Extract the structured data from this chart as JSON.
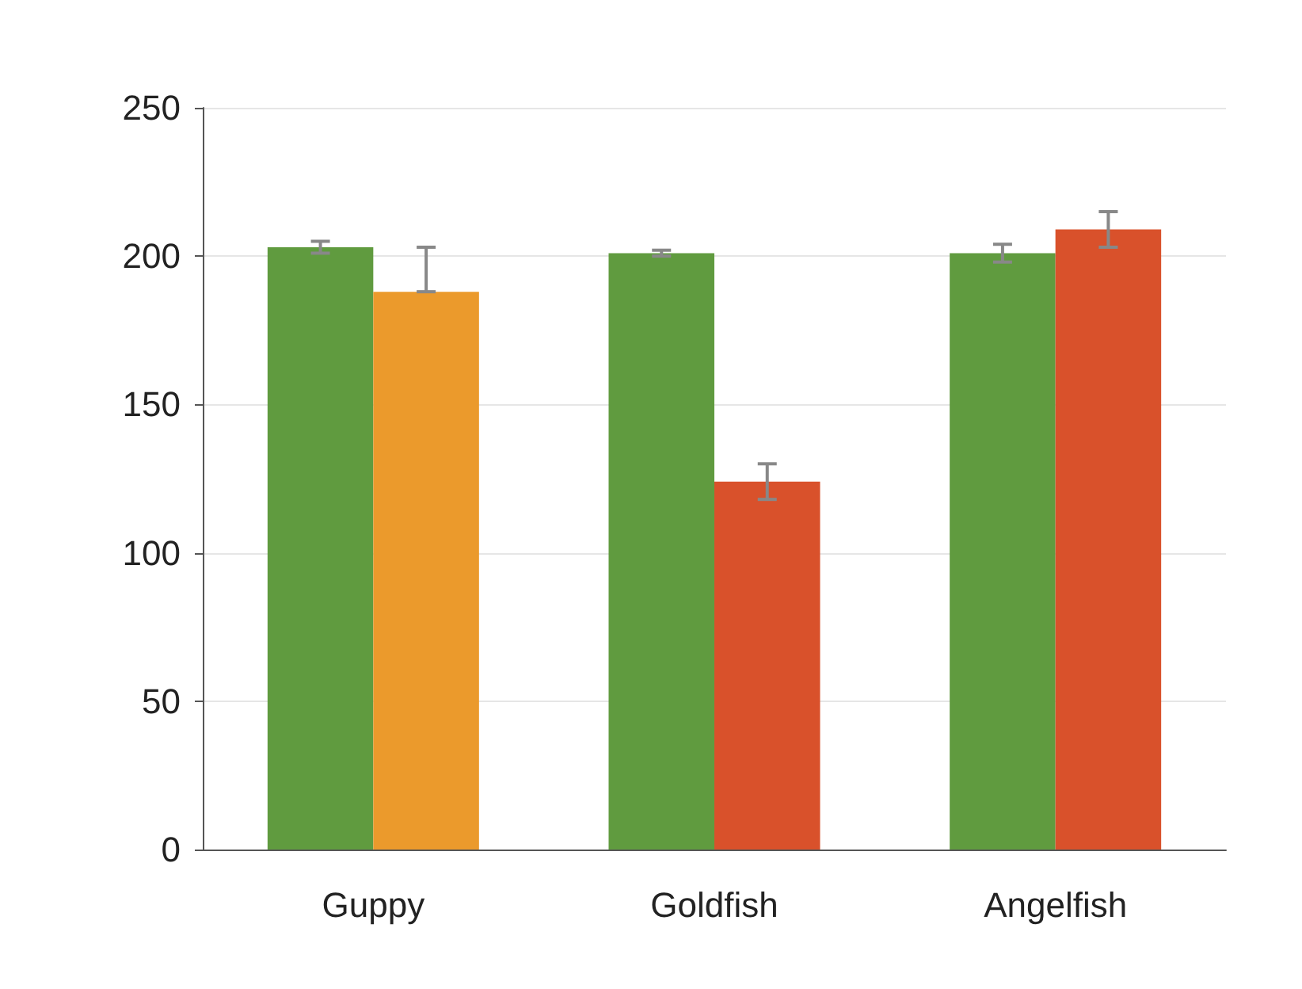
{
  "chart_data": {
    "type": "bar",
    "categories": [
      "Guppy",
      "Goldfish",
      "Angelfish"
    ],
    "series": [
      {
        "color": "#609b3f",
        "values": [
          203,
          201,
          201
        ],
        "errors": [
          2,
          1,
          3
        ]
      },
      {
        "colors": [
          "#eb9a2c",
          "#d9512b",
          "#d9512b"
        ],
        "values": [
          188,
          124,
          209
        ],
        "errors": [
          [
            188,
            203
          ],
          6,
          6
        ]
      }
    ],
    "ylim": [
      0,
      250
    ],
    "yticks": [
      0,
      50,
      100,
      150,
      200,
      250
    ],
    "grid": "y"
  }
}
